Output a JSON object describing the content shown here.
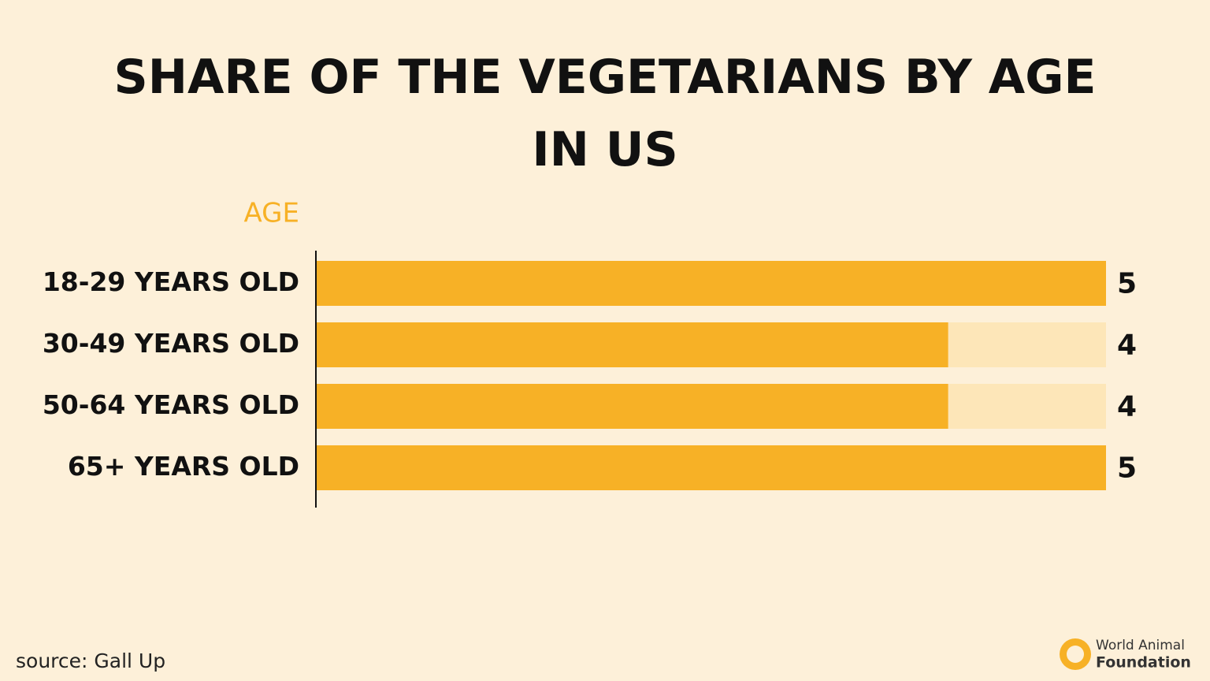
{
  "chart_data": {
    "type": "barh",
    "title": "SHARE OF THE VEGETARIANS BY AGE IN US",
    "y_label": "AGE",
    "categories": [
      "18-29 YEARS OLD",
      "30-49 YEARS OLD",
      "50-64 YEARS OLD",
      "65+ YEARS OLD"
    ],
    "values": [
      5,
      4,
      4,
      5
    ],
    "color": "#f7b126",
    "track_color": "#fde6b8",
    "xlim": [
      0,
      5
    ],
    "source": "source: Gall Up",
    "logo": [
      "World Animal",
      "Foundation"
    ]
  }
}
